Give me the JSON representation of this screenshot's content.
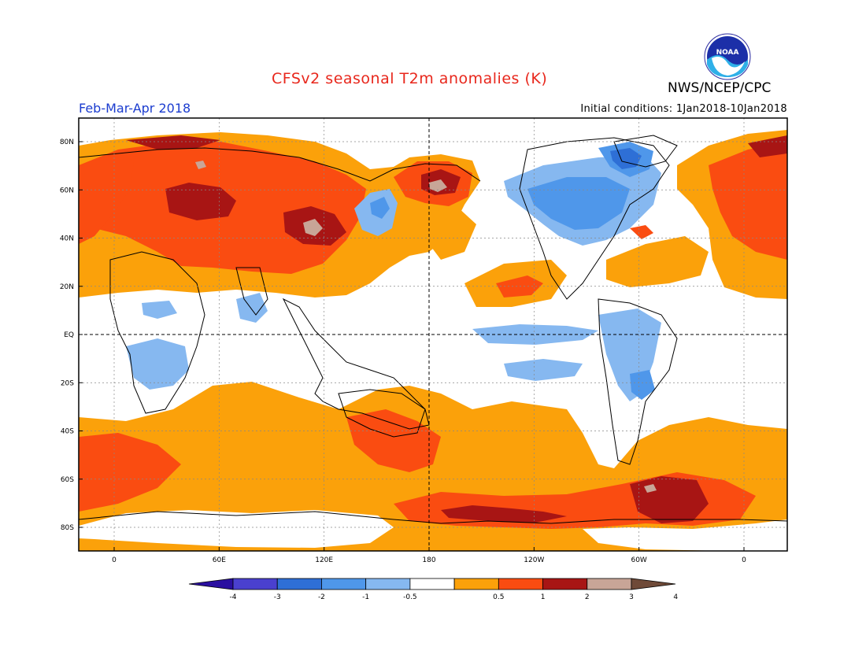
{
  "header": {
    "title": "CFSv2 seasonal T2m anomalies (K)",
    "org": "NWS/NCEP/CPC",
    "period": "Feb-Mar-Apr 2018",
    "initial_conditions": "Initial conditions: 1Jan2018-10Jan2018",
    "logo_text": "NOAA"
  },
  "axes": {
    "lat_labels": [
      "80N",
      "60N",
      "40N",
      "20N",
      "EQ",
      "20S",
      "40S",
      "60S",
      "80S"
    ],
    "lat_values": [
      80,
      60,
      40,
      20,
      0,
      -20,
      -40,
      -60,
      -80
    ],
    "lon_labels": [
      "0",
      "60E",
      "120E",
      "180",
      "120W",
      "60W",
      "0"
    ],
    "lon_values": [
      0,
      60,
      120,
      180,
      240,
      300,
      360
    ]
  },
  "colorbar": {
    "tick_labels": [
      "-4",
      "-3",
      "-2",
      "-1",
      "-0.5",
      "0.5",
      "1",
      "2",
      "3",
      "4"
    ],
    "colors": [
      "#2a0fa0",
      "#4a40cf",
      "#2e6fd6",
      "#4f97ea",
      "#86b8f0",
      "#ffffff",
      "#fba10a",
      "#fa4c11",
      "#a81514",
      "#c8a597",
      "#6f4a38"
    ]
  },
  "colors": {
    "ocean_land_neutral": "#ffffff",
    "warm_05_1": "#fba10a",
    "warm_1_2": "#fa4c11",
    "warm_2_3": "#a81514",
    "warm_3_4": "#c8a597",
    "cool_05_1": "#86b8f0",
    "cool_1_2": "#4f97ea",
    "cool_2_3": "#2e6fd6",
    "cool_3_4": "#4a40cf",
    "title_red": "#e8271c",
    "period_blue": "#1b3ccf"
  }
}
